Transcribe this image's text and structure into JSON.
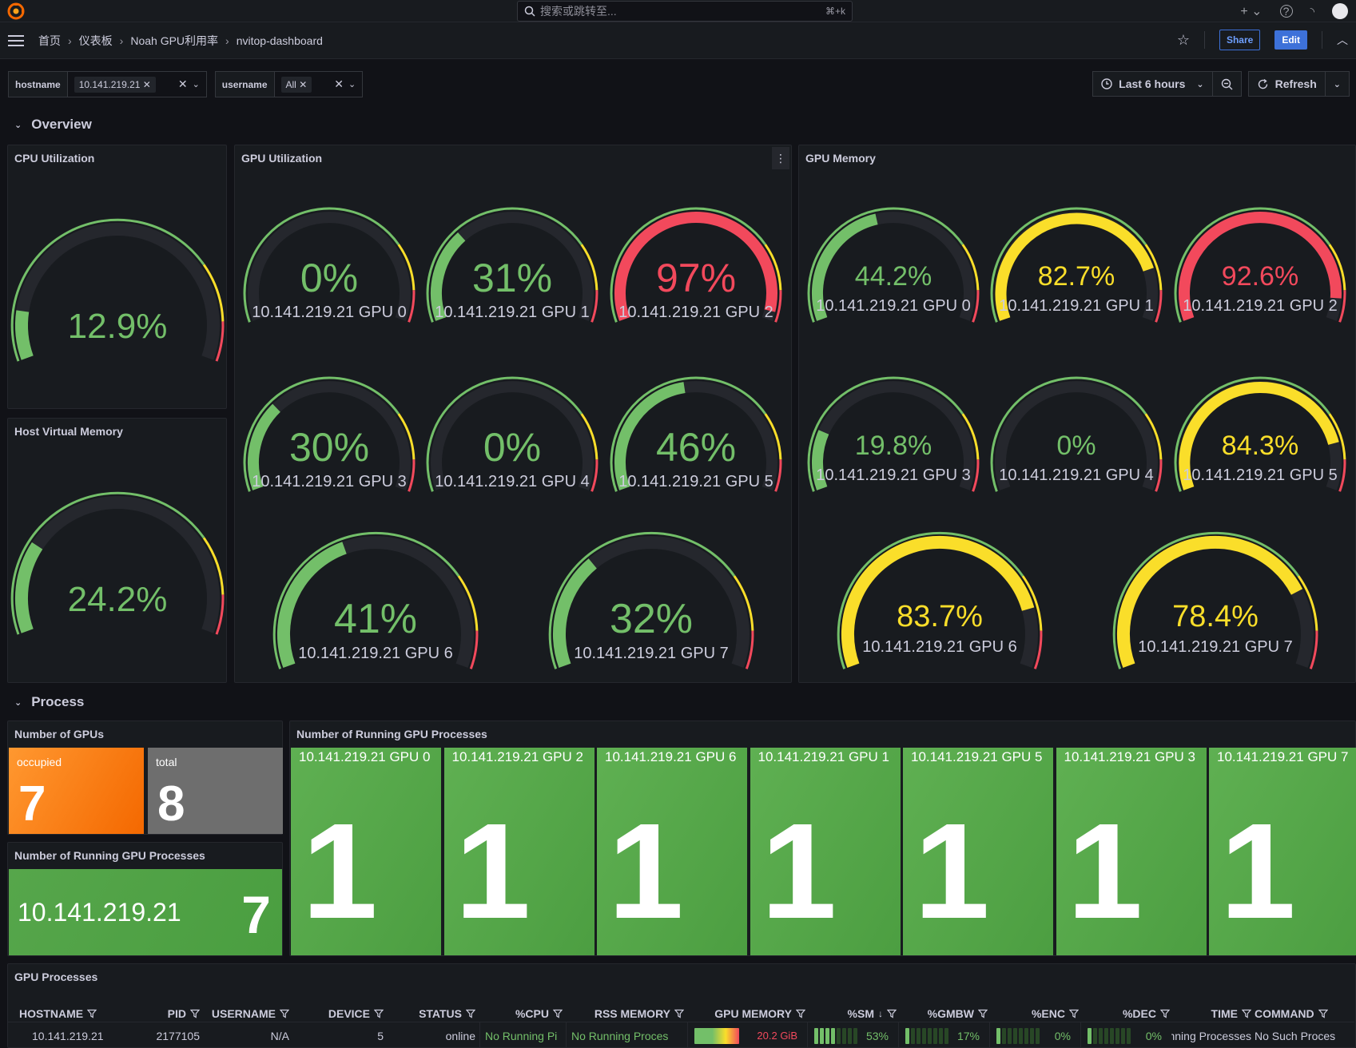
{
  "topbar": {
    "search_placeholder": "搜索或跳转至...",
    "search_shortcut": "⌘+k"
  },
  "breadcrumb": [
    "首页",
    "仪表板",
    "Noah GPU利用率",
    "nvitop-dashboard"
  ],
  "actions": {
    "share": "Share",
    "edit": "Edit"
  },
  "variables": {
    "hostname": {
      "label": "hostname",
      "value": "10.141.219.21"
    },
    "username": {
      "label": "username",
      "value": "All"
    }
  },
  "time": {
    "range": "Last 6 hours",
    "refresh": "Refresh"
  },
  "rows": {
    "overview": "Overview",
    "process": "Process"
  },
  "panels": {
    "cpu": {
      "title": "CPU Utilization",
      "value": "12.9%",
      "percent": 12.9
    },
    "vmem": {
      "title": "Host Virtual Memory",
      "value": "24.2%",
      "percent": 24.2
    },
    "gpu_util": {
      "title": "GPU Utilization",
      "gauges": [
        {
          "label": "10.141.219.21 GPU 0",
          "value": "0%",
          "percent": 0
        },
        {
          "label": "10.141.219.21 GPU 1",
          "value": "31%",
          "percent": 31
        },
        {
          "label": "10.141.219.21 GPU 2",
          "value": "97%",
          "percent": 97
        },
        {
          "label": "10.141.219.21 GPU 3",
          "value": "30%",
          "percent": 30
        },
        {
          "label": "10.141.219.21 GPU 4",
          "value": "0%",
          "percent": 0
        },
        {
          "label": "10.141.219.21 GPU 5",
          "value": "46%",
          "percent": 46
        },
        {
          "label": "10.141.219.21 GPU 6",
          "value": "41%",
          "percent": 41
        },
        {
          "label": "10.141.219.21 GPU 7",
          "value": "32%",
          "percent": 32
        }
      ]
    },
    "gpu_mem": {
      "title": "GPU Memory",
      "gauges": [
        {
          "label": "10.141.219.21 GPU 0",
          "value": "44.2%",
          "percent": 44.2
        },
        {
          "label": "10.141.219.21 GPU 1",
          "value": "82.7%",
          "percent": 82.7
        },
        {
          "label": "10.141.219.21 GPU 2",
          "value": "92.6%",
          "percent": 92.6
        },
        {
          "label": "10.141.219.21 GPU 3",
          "value": "19.8%",
          "percent": 19.8
        },
        {
          "label": "10.141.219.21 GPU 4",
          "value": "0%",
          "percent": 0
        },
        {
          "label": "10.141.219.21 GPU 5",
          "value": "84.3%",
          "percent": 84.3
        },
        {
          "label": "10.141.219.21 GPU 6",
          "value": "83.7%",
          "percent": 83.7
        },
        {
          "label": "10.141.219.21 GPU 7",
          "value": "78.4%",
          "percent": 78.4
        }
      ]
    },
    "num_gpus": {
      "title": "Number of GPUs",
      "occupied": {
        "label": "occupied",
        "value": "7"
      },
      "total": {
        "label": "total",
        "value": "8"
      }
    },
    "running_small": {
      "title": "Number of Running GPU Processes",
      "label": "10.141.219.21",
      "value": "7"
    },
    "running_big": {
      "title": "Number of Running GPU Processes",
      "tiles": [
        {
          "label": "10.141.219.21 GPU 0",
          "value": "1"
        },
        {
          "label": "10.141.219.21 GPU 2",
          "value": "1"
        },
        {
          "label": "10.141.219.21 GPU 6",
          "value": "1"
        },
        {
          "label": "10.141.219.21 GPU 1",
          "value": "1"
        },
        {
          "label": "10.141.219.21 GPU 5",
          "value": "1"
        },
        {
          "label": "10.141.219.21 GPU 3",
          "value": "1"
        },
        {
          "label": "10.141.219.21 GPU 7",
          "value": "1"
        }
      ]
    },
    "processes": {
      "title": "GPU Processes",
      "columns": [
        "HOSTNAME",
        "PID",
        "USERNAME",
        "DEVICE",
        "STATUS",
        "%CPU",
        "RSS MEMORY",
        "GPU MEMORY",
        "%SM",
        "%GMBW",
        "%ENC",
        "%DEC",
        "TIME",
        "COMMAND"
      ],
      "row": {
        "hostname": "10.141.219.21",
        "pid": "2177105",
        "username": "N/A",
        "device": "5",
        "status": "online",
        "cpu": "No Running Pi",
        "rss": "No Running Proces",
        "gpu_memory": "20.2 GiB",
        "sm": "53%",
        "gmbw": "17%",
        "enc": "0%",
        "dec": "0%",
        "time": "nning Processes",
        "command": "No Such Proces"
      }
    }
  },
  "colors": {
    "green": "#73bf69",
    "yellow": "#fade2a",
    "red": "#f2495c",
    "orange": "#ff780a",
    "grey": "#6e6e6e",
    "tile_green": "#56a64b",
    "track": "#25272d"
  }
}
